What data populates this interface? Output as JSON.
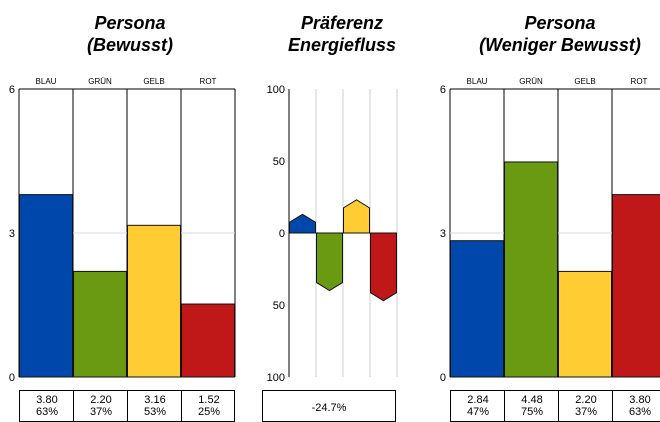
{
  "colors": {
    "blau": "#0047ab",
    "gruen": "#6a9a12",
    "gelb": "#ffcc33",
    "rot": "#c01818"
  },
  "chart_data": [
    {
      "type": "bar",
      "title": "Persona (Bewusst)",
      "title_lines": [
        "Persona",
        "(Bewusst)"
      ],
      "categories": [
        "BLAU",
        "GRÜN",
        "GELB",
        "ROT"
      ],
      "values": [
        3.8,
        2.2,
        3.16,
        1.52
      ],
      "value_labels": [
        "3.80",
        "2.20",
        "3.16",
        "1.52"
      ],
      "percent_labels": [
        "63%",
        "37%",
        "53%",
        "25%"
      ],
      "y_ticks": [
        "6",
        "3",
        "0"
      ],
      "ylim": [
        0,
        6
      ],
      "grid": "midline"
    },
    {
      "type": "bar",
      "title": "Präferenz Energiefluss",
      "title_lines": [
        "Präferenz",
        "Energiefluss"
      ],
      "categories": [
        "BLAU",
        "GRÜN",
        "GELB",
        "ROT"
      ],
      "values": [
        13,
        -40,
        23,
        -47
      ],
      "y_ticks": [
        "100",
        "50",
        "0",
        "50",
        "100"
      ],
      "ylim": [
        -100,
        100
      ],
      "summary": "-24.7%"
    },
    {
      "type": "bar",
      "title": "Persona (Weniger Bewusst)",
      "title_lines": [
        "Persona",
        "(Weniger Bewusst)"
      ],
      "categories": [
        "BLAU",
        "GRÜN",
        "GELB",
        "ROT"
      ],
      "values": [
        2.84,
        4.48,
        2.2,
        3.8
      ],
      "value_labels": [
        "2.84",
        "4.48",
        "2.20",
        "3.80"
      ],
      "percent_labels": [
        "47%",
        "75%",
        "37%",
        "63%"
      ],
      "y_ticks": [
        "6",
        "3",
        "0"
      ],
      "ylim": [
        0,
        6
      ],
      "grid": "midline"
    }
  ]
}
